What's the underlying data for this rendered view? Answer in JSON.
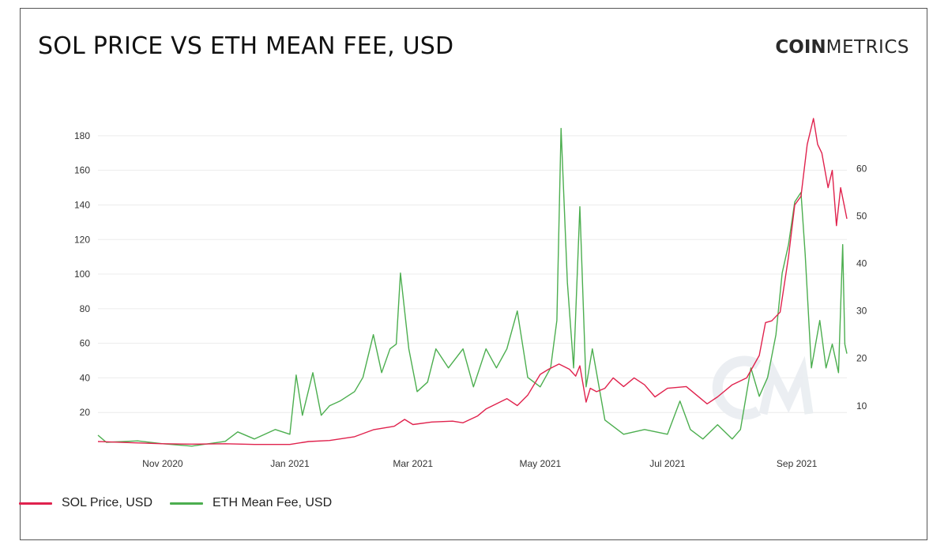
{
  "title": "SOL PRICE VS ETH MEAN FEE, USD",
  "logo": {
    "bold": "COIN",
    "light": "METRICS"
  },
  "colors": {
    "sol": "#e0224d",
    "eth": "#4cae4f",
    "grid": "#ececec",
    "watermark": "#eceff2"
  },
  "watermark_icon": "coinmetrics-cm-watermark",
  "chart_data": {
    "type": "line",
    "title": "SOL PRICE VS ETH MEAN FEE, USD",
    "x_ticks": [
      "Nov 2020",
      "Jan 2021",
      "Mar 2021",
      "May 2021",
      "Jul 2021",
      "Sep 2021"
    ],
    "x_tick_dates": [
      "2020-11-01",
      "2021-01-01",
      "2021-03-01",
      "2021-05-01",
      "2021-07-01",
      "2021-09-01"
    ],
    "x_range": [
      "2020-10-01",
      "2021-09-25"
    ],
    "y_left": {
      "ticks": [
        20,
        40,
        60,
        80,
        100,
        120,
        140,
        160,
        180
      ],
      "range": [
        0,
        190
      ]
    },
    "y_right": {
      "ticks": [
        10,
        20,
        30,
        40,
        50,
        60
      ],
      "range": [
        1.3,
        70.6
      ]
    },
    "grid": "horizontal",
    "legend_position": "bottom-left",
    "series": [
      {
        "name": "SOL Price, USD",
        "axis": "left",
        "points": [
          [
            "2020-10-01",
            3.2
          ],
          [
            "2020-10-15",
            2.6
          ],
          [
            "2020-11-01",
            1.9
          ],
          [
            "2020-11-15",
            1.7
          ],
          [
            "2020-12-01",
            1.9
          ],
          [
            "2020-12-15",
            1.5
          ],
          [
            "2021-01-01",
            1.5
          ],
          [
            "2021-01-10",
            3.2
          ],
          [
            "2021-01-20",
            3.8
          ],
          [
            "2021-02-01",
            6.0
          ],
          [
            "2021-02-10",
            10.0
          ],
          [
            "2021-02-20",
            12.0
          ],
          [
            "2021-02-25",
            16.0
          ],
          [
            "2021-03-01",
            13.0
          ],
          [
            "2021-03-10",
            14.5
          ],
          [
            "2021-03-20",
            15.0
          ],
          [
            "2021-03-25",
            14.0
          ],
          [
            "2021-04-01",
            18.0
          ],
          [
            "2021-04-05",
            22.0
          ],
          [
            "2021-04-10",
            25.0
          ],
          [
            "2021-04-15",
            28.0
          ],
          [
            "2021-04-20",
            24.0
          ],
          [
            "2021-04-25",
            30.0
          ],
          [
            "2021-05-01",
            42.0
          ],
          [
            "2021-05-05",
            45.0
          ],
          [
            "2021-05-10",
            48.0
          ],
          [
            "2021-05-15",
            45.0
          ],
          [
            "2021-05-18",
            41.0
          ],
          [
            "2021-05-20",
            47.0
          ],
          [
            "2021-05-23",
            26.0
          ],
          [
            "2021-05-25",
            34.0
          ],
          [
            "2021-05-28",
            32.0
          ],
          [
            "2021-06-01",
            34.0
          ],
          [
            "2021-06-05",
            40.0
          ],
          [
            "2021-06-10",
            35.0
          ],
          [
            "2021-06-15",
            40.0
          ],
          [
            "2021-06-20",
            36.0
          ],
          [
            "2021-06-25",
            29.0
          ],
          [
            "2021-07-01",
            34.0
          ],
          [
            "2021-07-10",
            35.0
          ],
          [
            "2021-07-20",
            25.0
          ],
          [
            "2021-07-25",
            29.0
          ],
          [
            "2021-08-01",
            36.0
          ],
          [
            "2021-08-08",
            40.0
          ],
          [
            "2021-08-14",
            53.0
          ],
          [
            "2021-08-17",
            72.0
          ],
          [
            "2021-08-20",
            73.0
          ],
          [
            "2021-08-24",
            78.0
          ],
          [
            "2021-08-28",
            110.0
          ],
          [
            "2021-08-31",
            140.0
          ],
          [
            "2021-09-03",
            145.0
          ],
          [
            "2021-09-06",
            175.0
          ],
          [
            "2021-09-09",
            190.0
          ],
          [
            "2021-09-11",
            175.0
          ],
          [
            "2021-09-13",
            170.0
          ],
          [
            "2021-09-16",
            150.0
          ],
          [
            "2021-09-18",
            160.0
          ],
          [
            "2021-09-20",
            128.0
          ],
          [
            "2021-09-22",
            150.0
          ],
          [
            "2021-09-24",
            138.0
          ],
          [
            "2021-09-25",
            132.0
          ]
        ]
      },
      {
        "name": "ETH Mean Fee, USD",
        "axis": "right",
        "points": [
          [
            "2020-10-01",
            3.8
          ],
          [
            "2020-10-05",
            2.3
          ],
          [
            "2020-10-20",
            2.6
          ],
          [
            "2020-11-01",
            2.0
          ],
          [
            "2020-11-15",
            1.5
          ],
          [
            "2020-12-01",
            2.5
          ],
          [
            "2020-12-07",
            4.5
          ],
          [
            "2020-12-15",
            3.0
          ],
          [
            "2020-12-25",
            5.0
          ],
          [
            "2021-01-01",
            4.0
          ],
          [
            "2021-01-04",
            16.5
          ],
          [
            "2021-01-07",
            8.0
          ],
          [
            "2021-01-12",
            17.0
          ],
          [
            "2021-01-16",
            8.0
          ],
          [
            "2021-01-20",
            10.0
          ],
          [
            "2021-01-25",
            11.0
          ],
          [
            "2021-02-01",
            13.0
          ],
          [
            "2021-02-05",
            16.0
          ],
          [
            "2021-02-10",
            25.0
          ],
          [
            "2021-02-14",
            17.0
          ],
          [
            "2021-02-18",
            22.0
          ],
          [
            "2021-02-21",
            23.0
          ],
          [
            "2021-02-23",
            38.0
          ],
          [
            "2021-02-27",
            22.0
          ],
          [
            "2021-03-03",
            13.0
          ],
          [
            "2021-03-08",
            15.0
          ],
          [
            "2021-03-12",
            22.0
          ],
          [
            "2021-03-18",
            18.0
          ],
          [
            "2021-03-25",
            22.0
          ],
          [
            "2021-03-30",
            14.0
          ],
          [
            "2021-04-05",
            22.0
          ],
          [
            "2021-04-10",
            18.0
          ],
          [
            "2021-04-15",
            22.0
          ],
          [
            "2021-04-20",
            30.0
          ],
          [
            "2021-04-25",
            16.0
          ],
          [
            "2021-05-01",
            14.0
          ],
          [
            "2021-05-06",
            18.0
          ],
          [
            "2021-05-09",
            28.0
          ],
          [
            "2021-05-11",
            68.5
          ],
          [
            "2021-05-14",
            36.0
          ],
          [
            "2021-05-17",
            18.0
          ],
          [
            "2021-05-20",
            52.0
          ],
          [
            "2021-05-23",
            14.0
          ],
          [
            "2021-05-26",
            22.0
          ],
          [
            "2021-06-01",
            7.0
          ],
          [
            "2021-06-10",
            4.0
          ],
          [
            "2021-06-20",
            5.0
          ],
          [
            "2021-07-01",
            4.0
          ],
          [
            "2021-07-07",
            11.0
          ],
          [
            "2021-07-12",
            5.0
          ],
          [
            "2021-07-18",
            3.0
          ],
          [
            "2021-07-25",
            6.0
          ],
          [
            "2021-08-01",
            3.0
          ],
          [
            "2021-08-05",
            5.0
          ],
          [
            "2021-08-10",
            18.0
          ],
          [
            "2021-08-14",
            12.0
          ],
          [
            "2021-08-18",
            16.0
          ],
          [
            "2021-08-22",
            25.0
          ],
          [
            "2021-08-25",
            38.0
          ],
          [
            "2021-08-28",
            44.0
          ],
          [
            "2021-08-31",
            53.0
          ],
          [
            "2021-09-03",
            55.0
          ],
          [
            "2021-09-05",
            42.0
          ],
          [
            "2021-09-08",
            18.0
          ],
          [
            "2021-09-12",
            28.0
          ],
          [
            "2021-09-15",
            18.0
          ],
          [
            "2021-09-18",
            23.0
          ],
          [
            "2021-09-21",
            17.0
          ],
          [
            "2021-09-23",
            44.0
          ],
          [
            "2021-09-24",
            23.0
          ],
          [
            "2021-09-25",
            21.0
          ]
        ]
      }
    ]
  }
}
